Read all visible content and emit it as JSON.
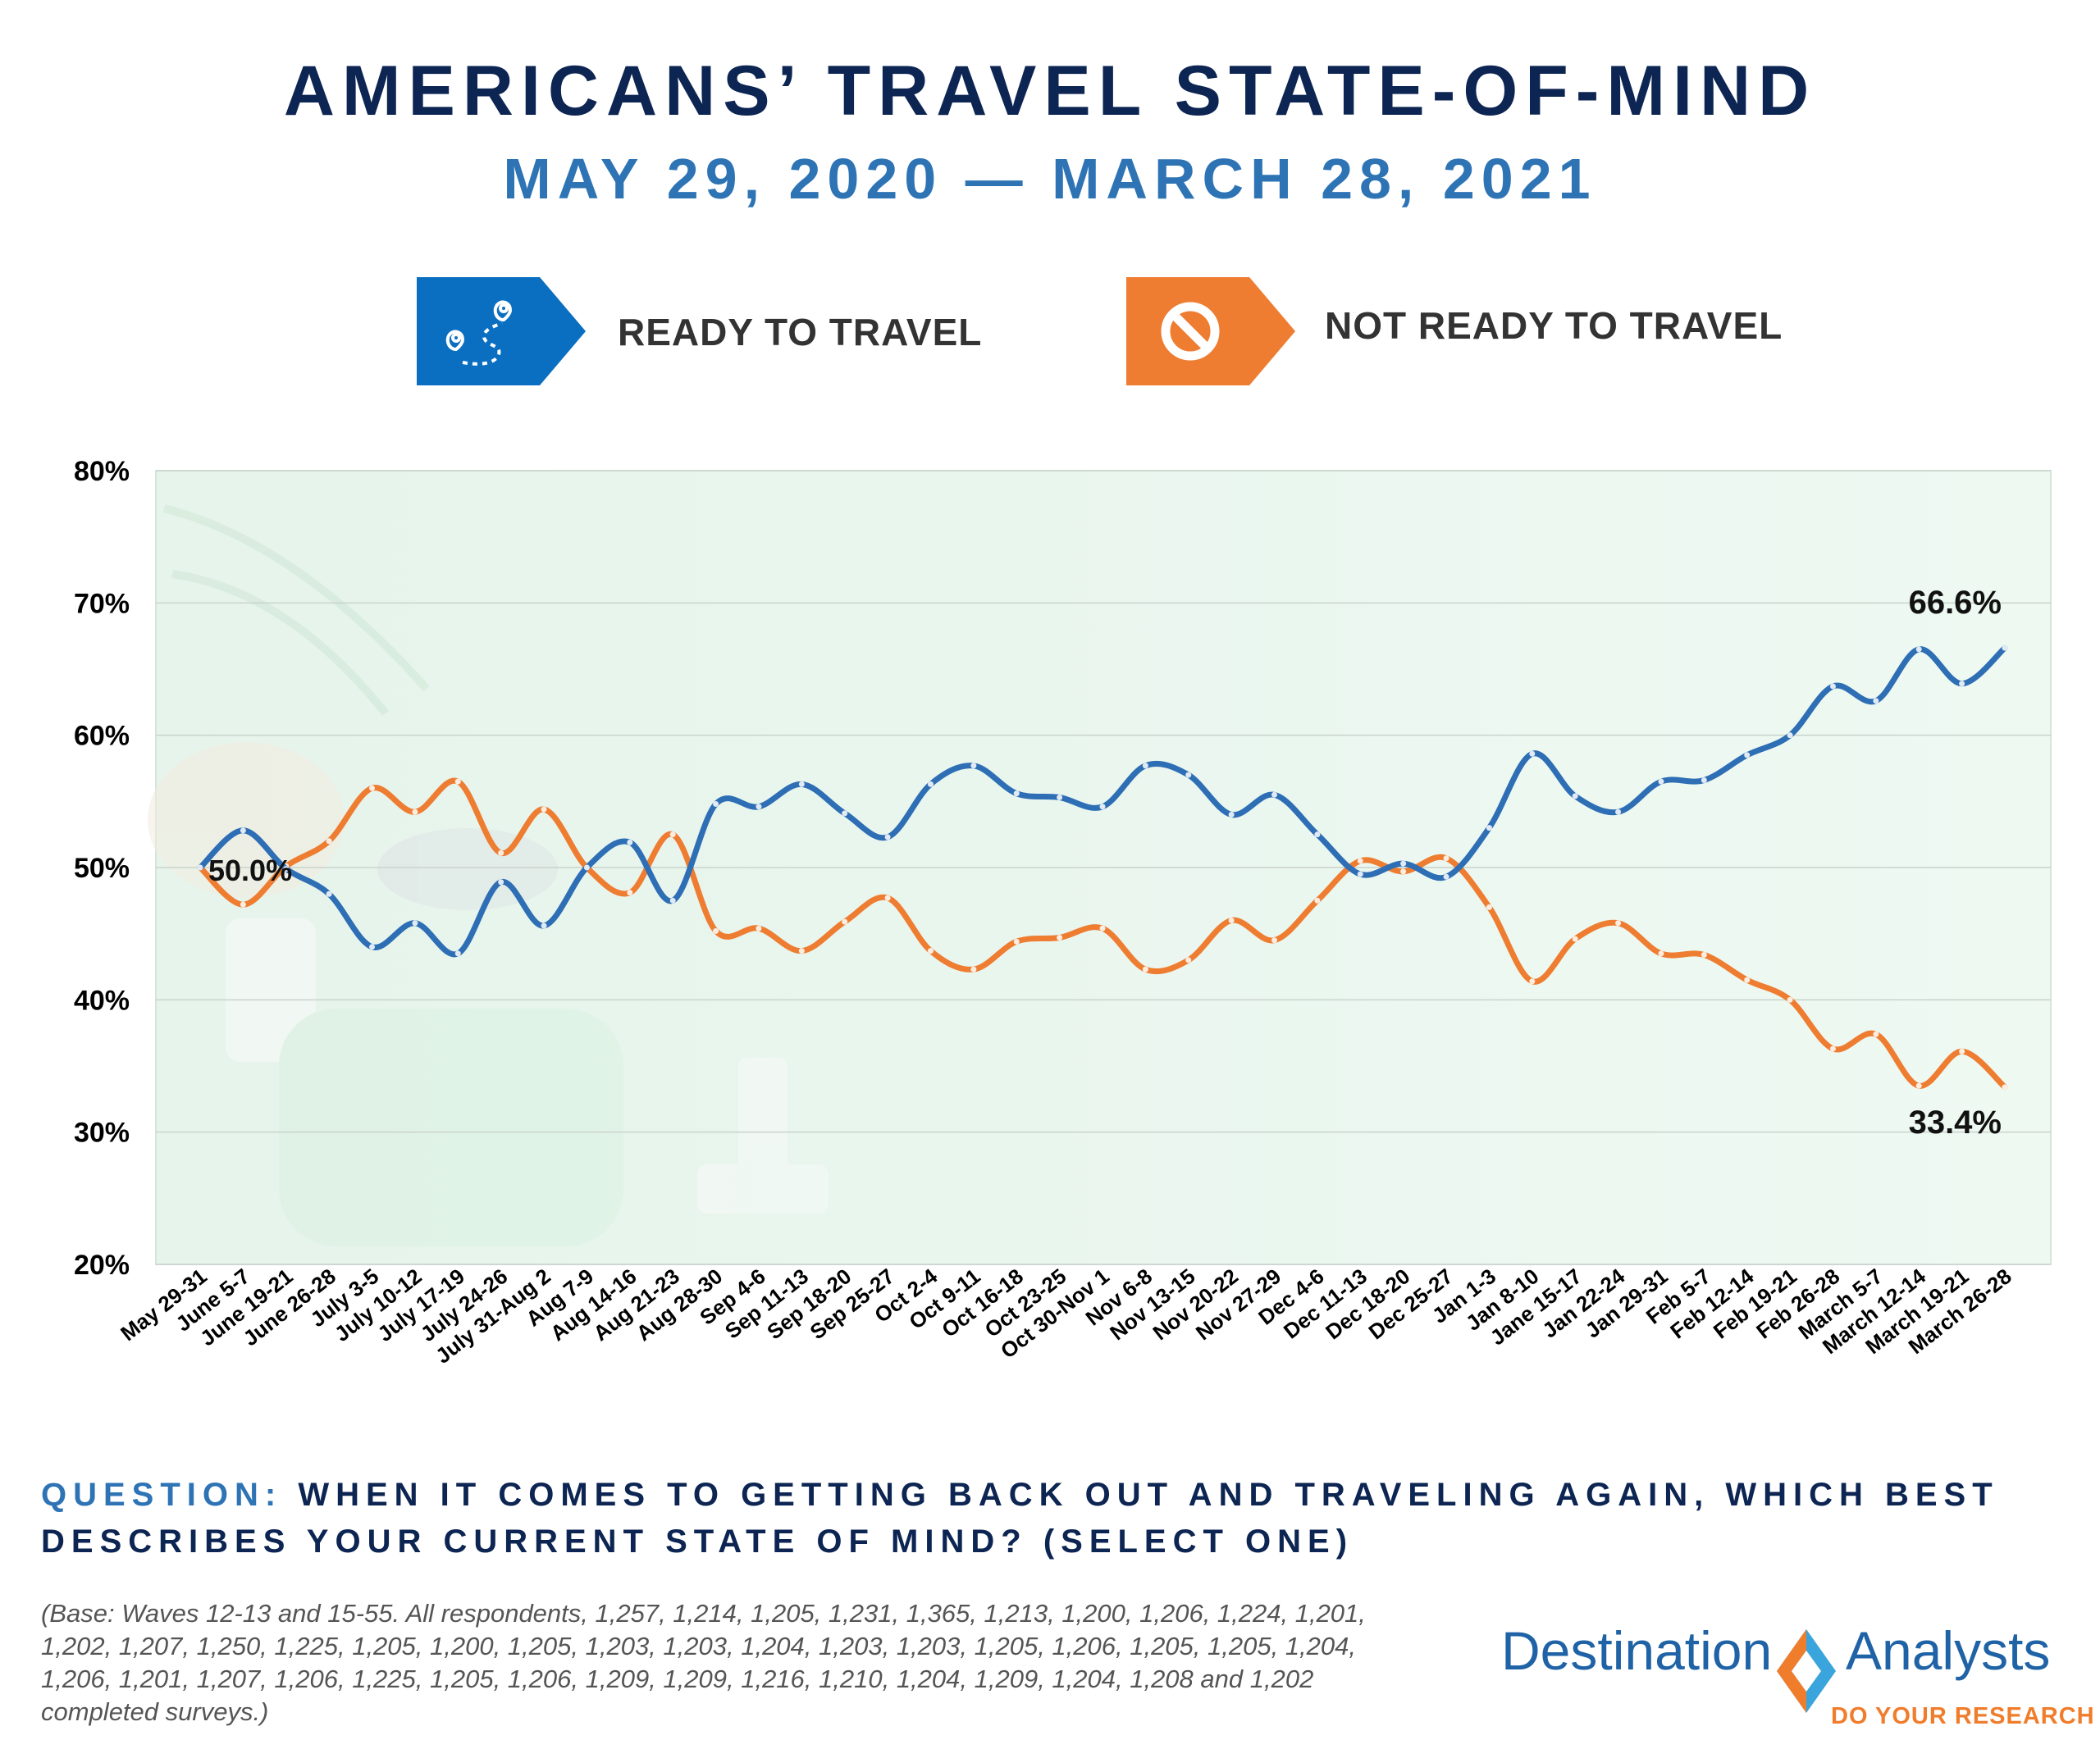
{
  "header": {
    "title": "AMERICANS’ TRAVEL STATE-OF-MIND",
    "subtitle": "MAY 29, 2020 — MARCH 28, 2021"
  },
  "legend": {
    "ready": {
      "label": "READY TO TRAVEL",
      "color": "#0b6fc1",
      "icon": "map-route-pin-icon"
    },
    "not_ready": {
      "label": "NOT READY TO TRAVEL",
      "color": "#ee7d31",
      "icon": "prohibited-icon"
    }
  },
  "chart_data": {
    "type": "line",
    "title": "AMERICANS’ TRAVEL STATE-OF-MIND",
    "subtitle": "MAY 29, 2020 — MARCH 28, 2021",
    "xlabel": "",
    "ylabel": "",
    "ylim": [
      20,
      80
    ],
    "yticks": [
      "20%",
      "30%",
      "40%",
      "50%",
      "60%",
      "70%",
      "80%"
    ],
    "grid": true,
    "legend_position": "top",
    "categories": [
      "May 29-31",
      "June 5-7",
      "June 19-21",
      "June 26-28",
      "July 3-5",
      "July 10-12",
      "July 17-19",
      "July 24-26",
      "July 31-Aug 2",
      "Aug 7-9",
      "Aug 14-16",
      "Aug 21-23",
      "Aug 28-30",
      "Sep 4-6",
      "Sep 11-13",
      "Sep 18-20",
      "Sep 25-27",
      "Oct 2-4",
      "Oct 9-11",
      "Oct 16-18",
      "Oct 23-25",
      "Oct 30-Nov 1",
      "Nov 6-8",
      "Nov 13-15",
      "Nov 20-22",
      "Nov 27-29",
      "Dec 4-6",
      "Dec 11-13",
      "Dec 18-20",
      "Dec 25-27",
      "Jan 1-3",
      "Jan 8-10",
      "Jane 15-17",
      "Jan 22-24",
      "Jan 29-31",
      "Feb 5-7",
      "Feb 12-14",
      "Feb 19-21",
      "Feb 26-28",
      "March 5-7",
      "March 12-14",
      "March 19-21",
      "March 26-28"
    ],
    "series": [
      {
        "name": "READY TO TRAVEL",
        "color": "#2e6eb5",
        "values": [
          50.0,
          52.8,
          49.9,
          48.0,
          44.0,
          45.8,
          43.5,
          48.9,
          45.6,
          50.0,
          51.9,
          47.5,
          54.8,
          54.6,
          56.3,
          54.1,
          52.3,
          56.3,
          57.7,
          55.6,
          55.3,
          54.6,
          57.7,
          57.0,
          54.0,
          55.5,
          52.5,
          49.5,
          50.3,
          49.3,
          53.0,
          58.6,
          55.4,
          54.2,
          56.5,
          56.6,
          58.5,
          60.0,
          63.7,
          62.6,
          66.5,
          63.9,
          66.6
        ]
      },
      {
        "name": "NOT READY TO TRAVEL",
        "color": "#ee7d31",
        "values": [
          50.0,
          47.2,
          50.1,
          52.0,
          56.0,
          54.2,
          56.5,
          51.1,
          54.4,
          50.0,
          48.1,
          52.5,
          45.2,
          45.4,
          43.7,
          45.9,
          47.7,
          43.7,
          42.3,
          44.4,
          44.7,
          45.4,
          42.3,
          43.0,
          46.0,
          44.5,
          47.5,
          50.5,
          49.7,
          50.7,
          47.0,
          41.4,
          44.6,
          45.8,
          43.5,
          43.4,
          41.5,
          40.0,
          36.3,
          37.4,
          33.5,
          36.1,
          33.4
        ]
      }
    ],
    "annotations": [
      {
        "series": 0,
        "index": 0,
        "text": "50.0%"
      },
      {
        "series": 0,
        "index": 42,
        "text": "66.6%"
      },
      {
        "series": 1,
        "index": 42,
        "text": "33.4%"
      }
    ]
  },
  "question": {
    "label": "QUESTION:",
    "text": "WHEN IT COMES TO GETTING BACK OUT AND TRAVELING AGAIN, WHICH BEST DESCRIBES YOUR CURRENT STATE OF MIND? (SELECT ONE)"
  },
  "base_note": "(Base: Waves 12-13 and 15-55. All respondents, 1,257, 1,214, 1,205, 1,231, 1,365, 1,213, 1,200, 1,206, 1,224, 1,201, 1,202, 1,207, 1,250, 1,225, 1,205, 1,200, 1,205, 1,203, 1,203, 1,204, 1,203, 1,203, 1,205, 1,206, 1,205, 1,205, 1,204, 1,206, 1,201, 1,207, 1,206, 1,225, 1,205, 1,206, 1,209, 1,209, 1,216, 1,210, 1,204, 1,209, 1,204, 1,208 and 1,202 completed surveys.)",
  "logo": {
    "word_left": "Destination",
    "word_right": "Analysts",
    "tagline": "DO YOUR RESEARCH",
    "colors": {
      "blue": "#1f63a6",
      "orange": "#f07d2c",
      "light_blue": "#3aa4dc"
    }
  }
}
